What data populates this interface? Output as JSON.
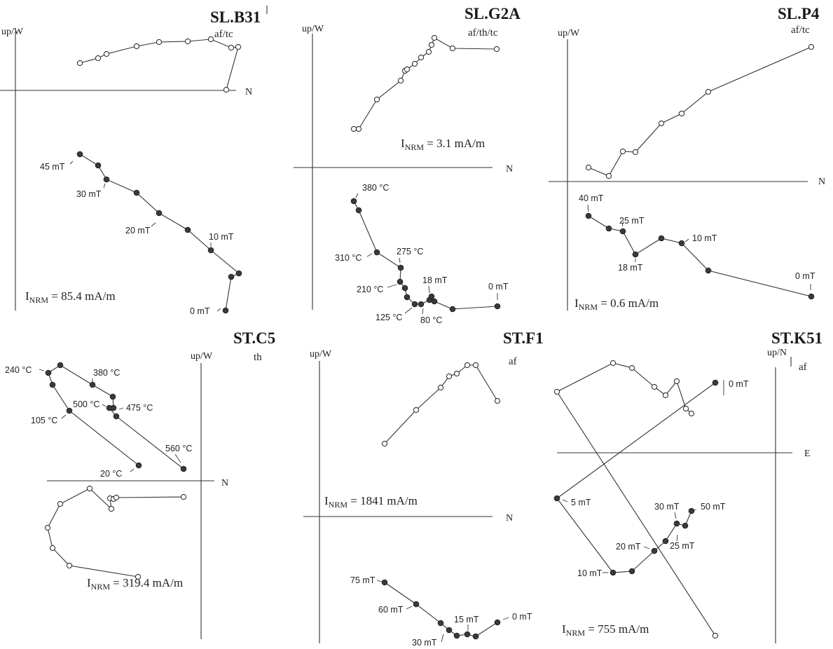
{
  "panels": [
    {
      "id": "SL.B31",
      "title": "SL.B31",
      "vertical_label": "up/W",
      "treatment": "af/tc",
      "horizontal_label": "N",
      "nrm": {
        "prefix": "I",
        "sub": "NRM",
        "value": " = 85.4 mA/m"
      },
      "step_labels": [
        "45 mT",
        "30 mT",
        "20 mT",
        "10 mT",
        "0 mT"
      ]
    },
    {
      "id": "SL.G2A",
      "title": "SL.G2A",
      "vertical_label": "up/W",
      "treatment": "af/th/tc",
      "horizontal_label": "N",
      "nrm": {
        "prefix": "I",
        "sub": "NRM",
        "value": " = 3.1 mA/m"
      },
      "step_labels": [
        "380 °C",
        "310 °C",
        "275 °C",
        "210 °C",
        "18 mT",
        "0 mT",
        "125 °C",
        "80 °C"
      ]
    },
    {
      "id": "SL.P4",
      "title": "SL.P4",
      "vertical_label": "up/W",
      "treatment": "af/tc",
      "horizontal_label": "N",
      "nrm": {
        "prefix": "I",
        "sub": "NRM",
        "value": " = 0.6 mA/m"
      },
      "step_labels": [
        "40 mT",
        "25 mT",
        "18 mT",
        "10 mT",
        "0 mT"
      ]
    },
    {
      "id": "ST.C5",
      "title": "ST.C5",
      "vertical_label": "up/W",
      "treatment": "th",
      "horizontal_label": "N",
      "nrm": {
        "prefix": "I",
        "sub": "NRM",
        "value": " = 319.4 mA/m"
      },
      "step_labels": [
        "240 °C",
        "380 °C",
        "500 °C",
        "475 °C",
        "105 °C",
        "560 °C",
        "20 °C"
      ]
    },
    {
      "id": "ST.F1",
      "title": "ST.F1",
      "vertical_label": "up/W",
      "treatment": "af",
      "horizontal_label": "N",
      "nrm": {
        "prefix": "I",
        "sub": "NRM",
        "value": " = 1841 mA/m"
      },
      "step_labels": [
        "75 mT",
        "60 mT",
        "15 mT",
        "0 mT",
        "30 mT"
      ]
    },
    {
      "id": "ST.K51",
      "title": "ST.K51",
      "vertical_label": "up/N",
      "treatment": "af",
      "horizontal_label": "E",
      "nrm": {
        "prefix": "I",
        "sub": "NRM",
        "value": " = 755 mA/m"
      },
      "step_labels": [
        "0 mT",
        "5 mT",
        "30 mT",
        "50 mT",
        "20 mT",
        "25 mT",
        "10 mT"
      ]
    }
  ]
}
